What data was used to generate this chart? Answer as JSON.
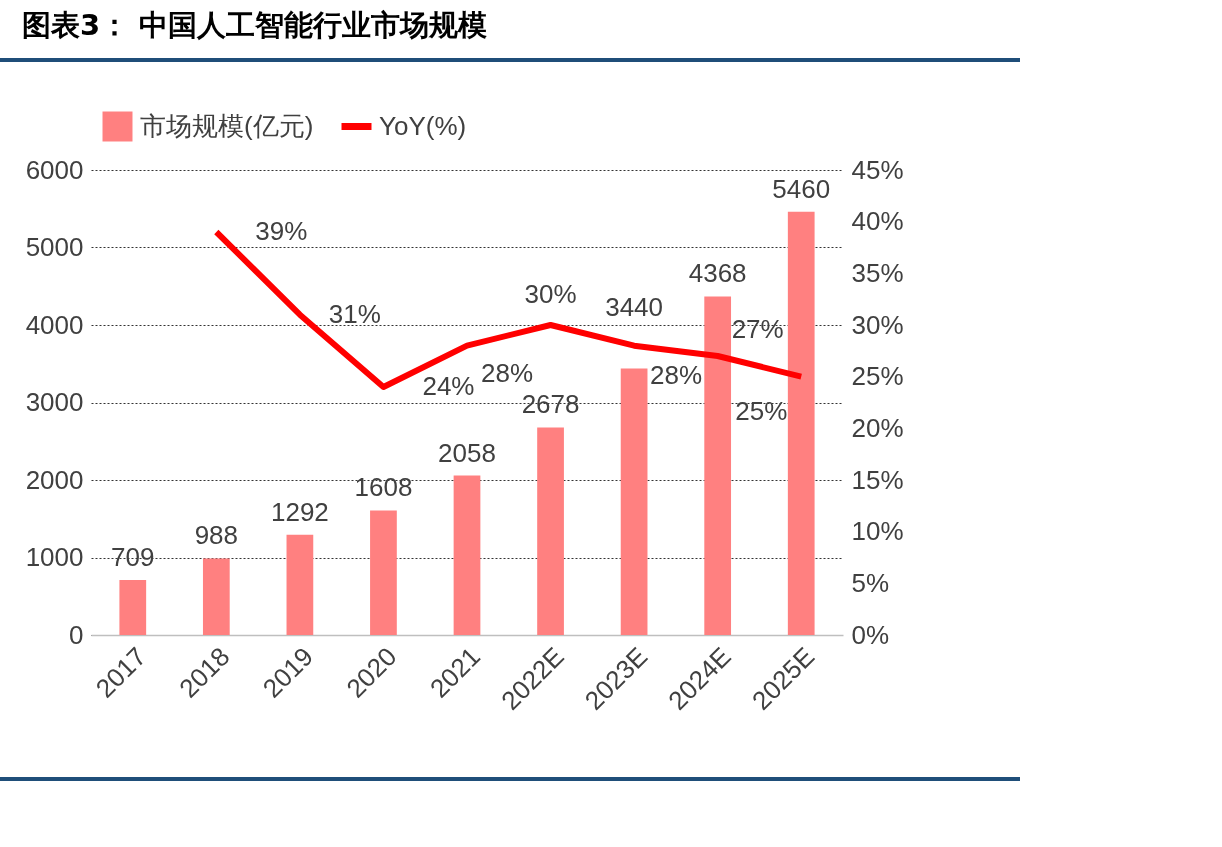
{
  "chart_data": {
    "type": "bar",
    "title": "图表3：  中国人工智能行业市场规模",
    "categories": [
      "2017",
      "2018",
      "2019",
      "2020",
      "2021",
      "2022E",
      "2023E",
      "2024E",
      "2025E"
    ],
    "series": [
      {
        "name": "市场规模(亿元)",
        "type": "bar",
        "color": "#ff8080",
        "values": [
          709,
          988,
          1292,
          1608,
          2058,
          2678,
          3440,
          4368,
          5460
        ],
        "value_labels": [
          "709",
          "988",
          "1292",
          "1608",
          "2058",
          "2678",
          "3440",
          "4368",
          "5460"
        ]
      },
      {
        "name": "YoY(%)",
        "type": "line",
        "axis": "y2",
        "color": "#ff0000",
        "values": [
          null,
          39,
          31,
          24,
          28,
          30,
          28,
          27,
          25
        ],
        "value_labels": [
          null,
          "39%",
          "31%",
          "24%",
          "28%",
          "30%",
          "28%",
          "27%",
          "25%"
        ]
      }
    ],
    "ylim": [
      0,
      6000
    ],
    "yticks": [
      0,
      1000,
      2000,
      3000,
      4000,
      5000,
      6000
    ],
    "y2lim": [
      0,
      45
    ],
    "y2ticks": [
      {
        "value": 0,
        "label": "0%"
      },
      {
        "value": 5,
        "label": "5%"
      },
      {
        "value": 10,
        "label": "10%"
      },
      {
        "value": 15,
        "label": "15%"
      },
      {
        "value": 20,
        "label": "20%"
      },
      {
        "value": 25,
        "label": "25%"
      },
      {
        "value": 30,
        "label": "30%"
      },
      {
        "value": 35,
        "label": "35%"
      },
      {
        "value": 40,
        "label": "40%"
      },
      {
        "value": 45,
        "label": "45%"
      }
    ],
    "grid": "y",
    "legend": "top",
    "marker": "none",
    "line_style": "solid"
  }
}
